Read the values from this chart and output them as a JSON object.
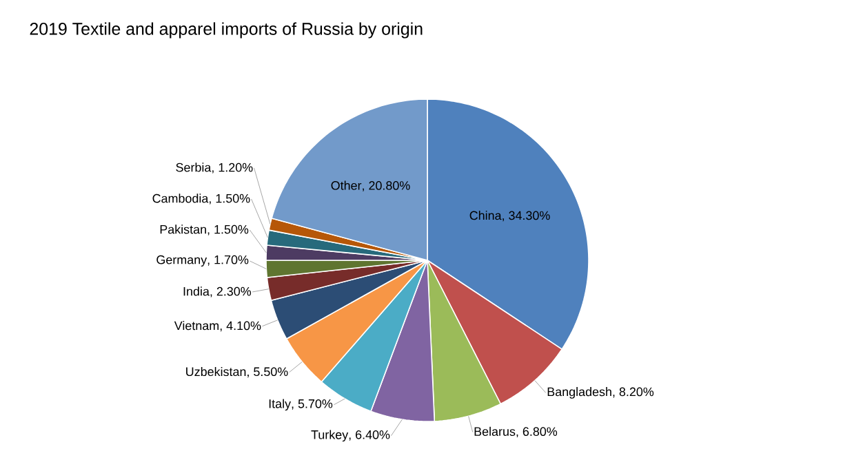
{
  "chart_data": {
    "type": "pie",
    "title": "2019 Textile and apparel imports of Russia by origin",
    "categories": [
      "China",
      "Bangladesh",
      "Belarus",
      "Turkey",
      "Italy",
      "Uzbekistan",
      "Vietnam",
      "India",
      "Germany",
      "Pakistan",
      "Cambodia",
      "Serbia",
      "Other"
    ],
    "values": [
      34.3,
      8.2,
      6.8,
      6.4,
      5.7,
      5.5,
      4.1,
      2.3,
      1.7,
      1.5,
      1.5,
      1.2,
      20.8
    ],
    "value_labels": [
      ", 34.30%",
      ", 8.20%",
      ", 6.80%",
      ", 6.40%",
      ", 5.70%",
      ", 5.50%",
      ", 4.10%",
      ", 2.30%",
      ", 1.70%",
      ", 1.50%",
      ", 1.50%",
      ", 1.20%",
      ", 20.80%"
    ],
    "colors": [
      "#4f81bd",
      "#c0504d",
      "#9bbb59",
      "#8064a2",
      "#4bacc6",
      "#f79646",
      "#2c4d75",
      "#772c2a",
      "#5f7530",
      "#4d3b62",
      "#276a7c",
      "#b65708",
      "#729aca"
    ]
  }
}
